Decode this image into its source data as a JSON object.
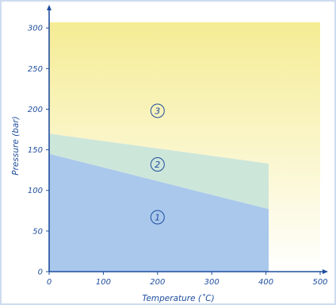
{
  "chart_data": {
    "type": "area",
    "title": "",
    "xlabel": "Temperature (˚C)",
    "ylabel": "Pressure (bar)",
    "xlim": [
      0,
      500
    ],
    "ylim": [
      0,
      310
    ],
    "xticks": [
      0,
      100,
      200,
      300,
      400,
      500
    ],
    "yticks": [
      0,
      50,
      100,
      150,
      200,
      250,
      300
    ],
    "grid": false,
    "regions": [
      {
        "name": "3",
        "label_pos": [
          200,
          198
        ],
        "color_top": "#f5ec94",
        "color_bottom": "#ffffff",
        "polygon": [
          [
            0,
            307
          ],
          [
            500,
            307
          ],
          [
            500,
            0
          ],
          [
            405,
            0
          ],
          [
            405,
            133
          ],
          [
            0,
            170
          ]
        ]
      },
      {
        "name": "2",
        "label_pos": [
          200,
          132
        ],
        "color": "#cde6da",
        "polygon": [
          [
            0,
            170
          ],
          [
            405,
            133
          ],
          [
            405,
            77
          ],
          [
            0,
            145
          ]
        ]
      },
      {
        "name": "1",
        "label_pos": [
          200,
          67
        ],
        "color": "#a9c8ec",
        "polygon": [
          [
            0,
            145
          ],
          [
            405,
            77
          ],
          [
            405,
            0
          ],
          [
            0,
            0
          ]
        ]
      }
    ],
    "colors": {
      "axis": "#1f4e9e"
    }
  }
}
